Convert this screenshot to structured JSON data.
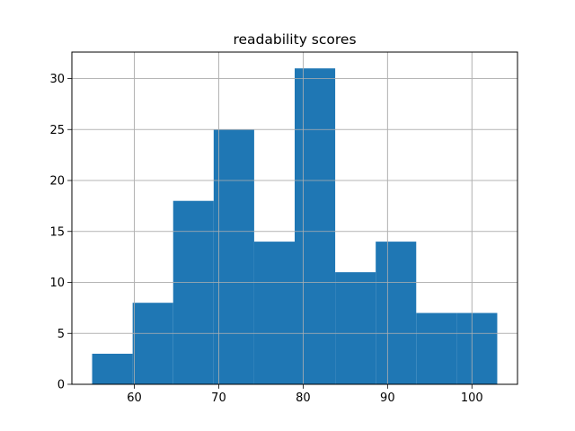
{
  "chart_data": {
    "type": "bar",
    "title": "readability scores",
    "xlabel": "",
    "ylabel": "",
    "bins": [
      {
        "start": 55.0,
        "end": 59.8,
        "count": 3
      },
      {
        "start": 59.8,
        "end": 64.6,
        "count": 8
      },
      {
        "start": 64.6,
        "end": 69.4,
        "count": 18
      },
      {
        "start": 69.4,
        "end": 74.2,
        "count": 25
      },
      {
        "start": 74.2,
        "end": 79.0,
        "count": 14
      },
      {
        "start": 79.0,
        "end": 83.8,
        "count": 31
      },
      {
        "start": 83.8,
        "end": 88.6,
        "count": 11
      },
      {
        "start": 88.6,
        "end": 93.4,
        "count": 14
      },
      {
        "start": 93.4,
        "end": 98.2,
        "count": 7
      },
      {
        "start": 98.2,
        "end": 103.0,
        "count": 7
      }
    ],
    "xlim": [
      52.6,
      105.4
    ],
    "ylim": [
      0,
      32.6
    ],
    "xticks": [
      60,
      70,
      80,
      90,
      100
    ],
    "yticks": [
      0,
      5,
      10,
      15,
      20,
      25,
      30
    ],
    "grid": true,
    "bar_color": "#1f77b4"
  }
}
